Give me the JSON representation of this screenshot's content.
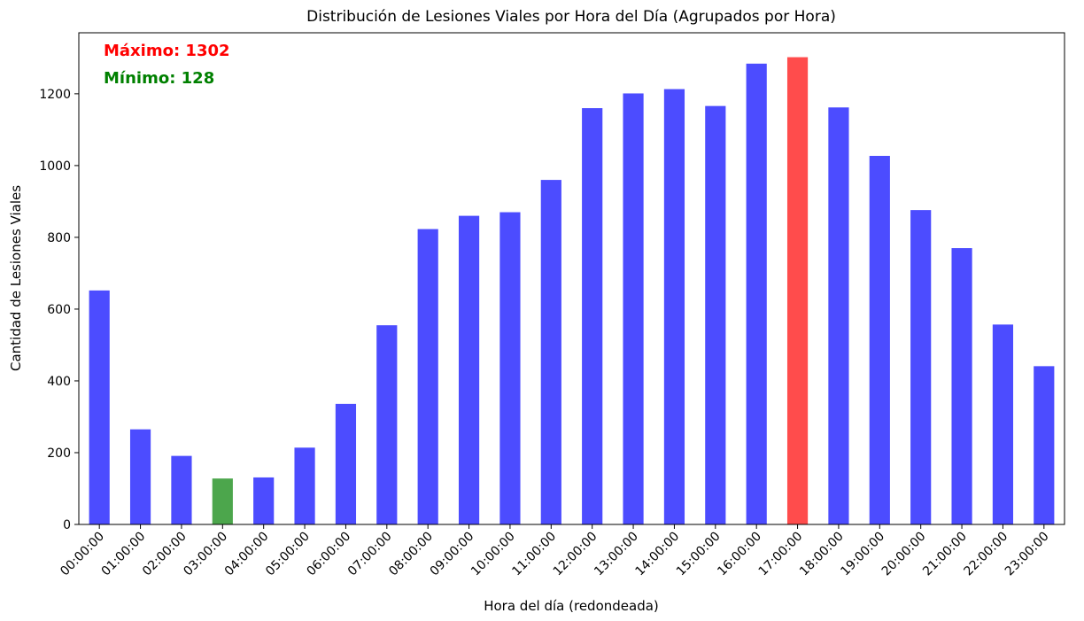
{
  "chart_data": {
    "type": "bar",
    "title": "Distribución de Lesiones Viales por Hora del Día (Agrupados por Hora)",
    "xlabel": "Hora del día (redondeada)",
    "ylabel": "Cantidad de Lesiones Viales",
    "ylim": [
      0,
      1370
    ],
    "yticks": [
      0,
      200,
      400,
      600,
      800,
      1000,
      1200
    ],
    "categories": [
      "00:00:00",
      "01:00:00",
      "02:00:00",
      "03:00:00",
      "04:00:00",
      "05:00:00",
      "06:00:00",
      "07:00:00",
      "08:00:00",
      "09:00:00",
      "10:00:00",
      "11:00:00",
      "12:00:00",
      "13:00:00",
      "14:00:00",
      "15:00:00",
      "16:00:00",
      "17:00:00",
      "18:00:00",
      "19:00:00",
      "20:00:00",
      "21:00:00",
      "22:00:00",
      "23:00:00"
    ],
    "values": [
      652,
      265,
      191,
      128,
      131,
      214,
      336,
      555,
      823,
      860,
      870,
      960,
      1160,
      1201,
      1213,
      1166,
      1284,
      1302,
      1162,
      1027,
      876,
      770,
      557,
      441
    ],
    "colors": {
      "default": "#4c4cff",
      "max": "#ff4c4c",
      "min": "#4ca64c"
    },
    "grid": false,
    "annotations": {
      "max_text": "Máximo: 1302",
      "min_text": "Mínimo: 128",
      "max_color": "#ff0000",
      "min_color": "#008000"
    }
  }
}
